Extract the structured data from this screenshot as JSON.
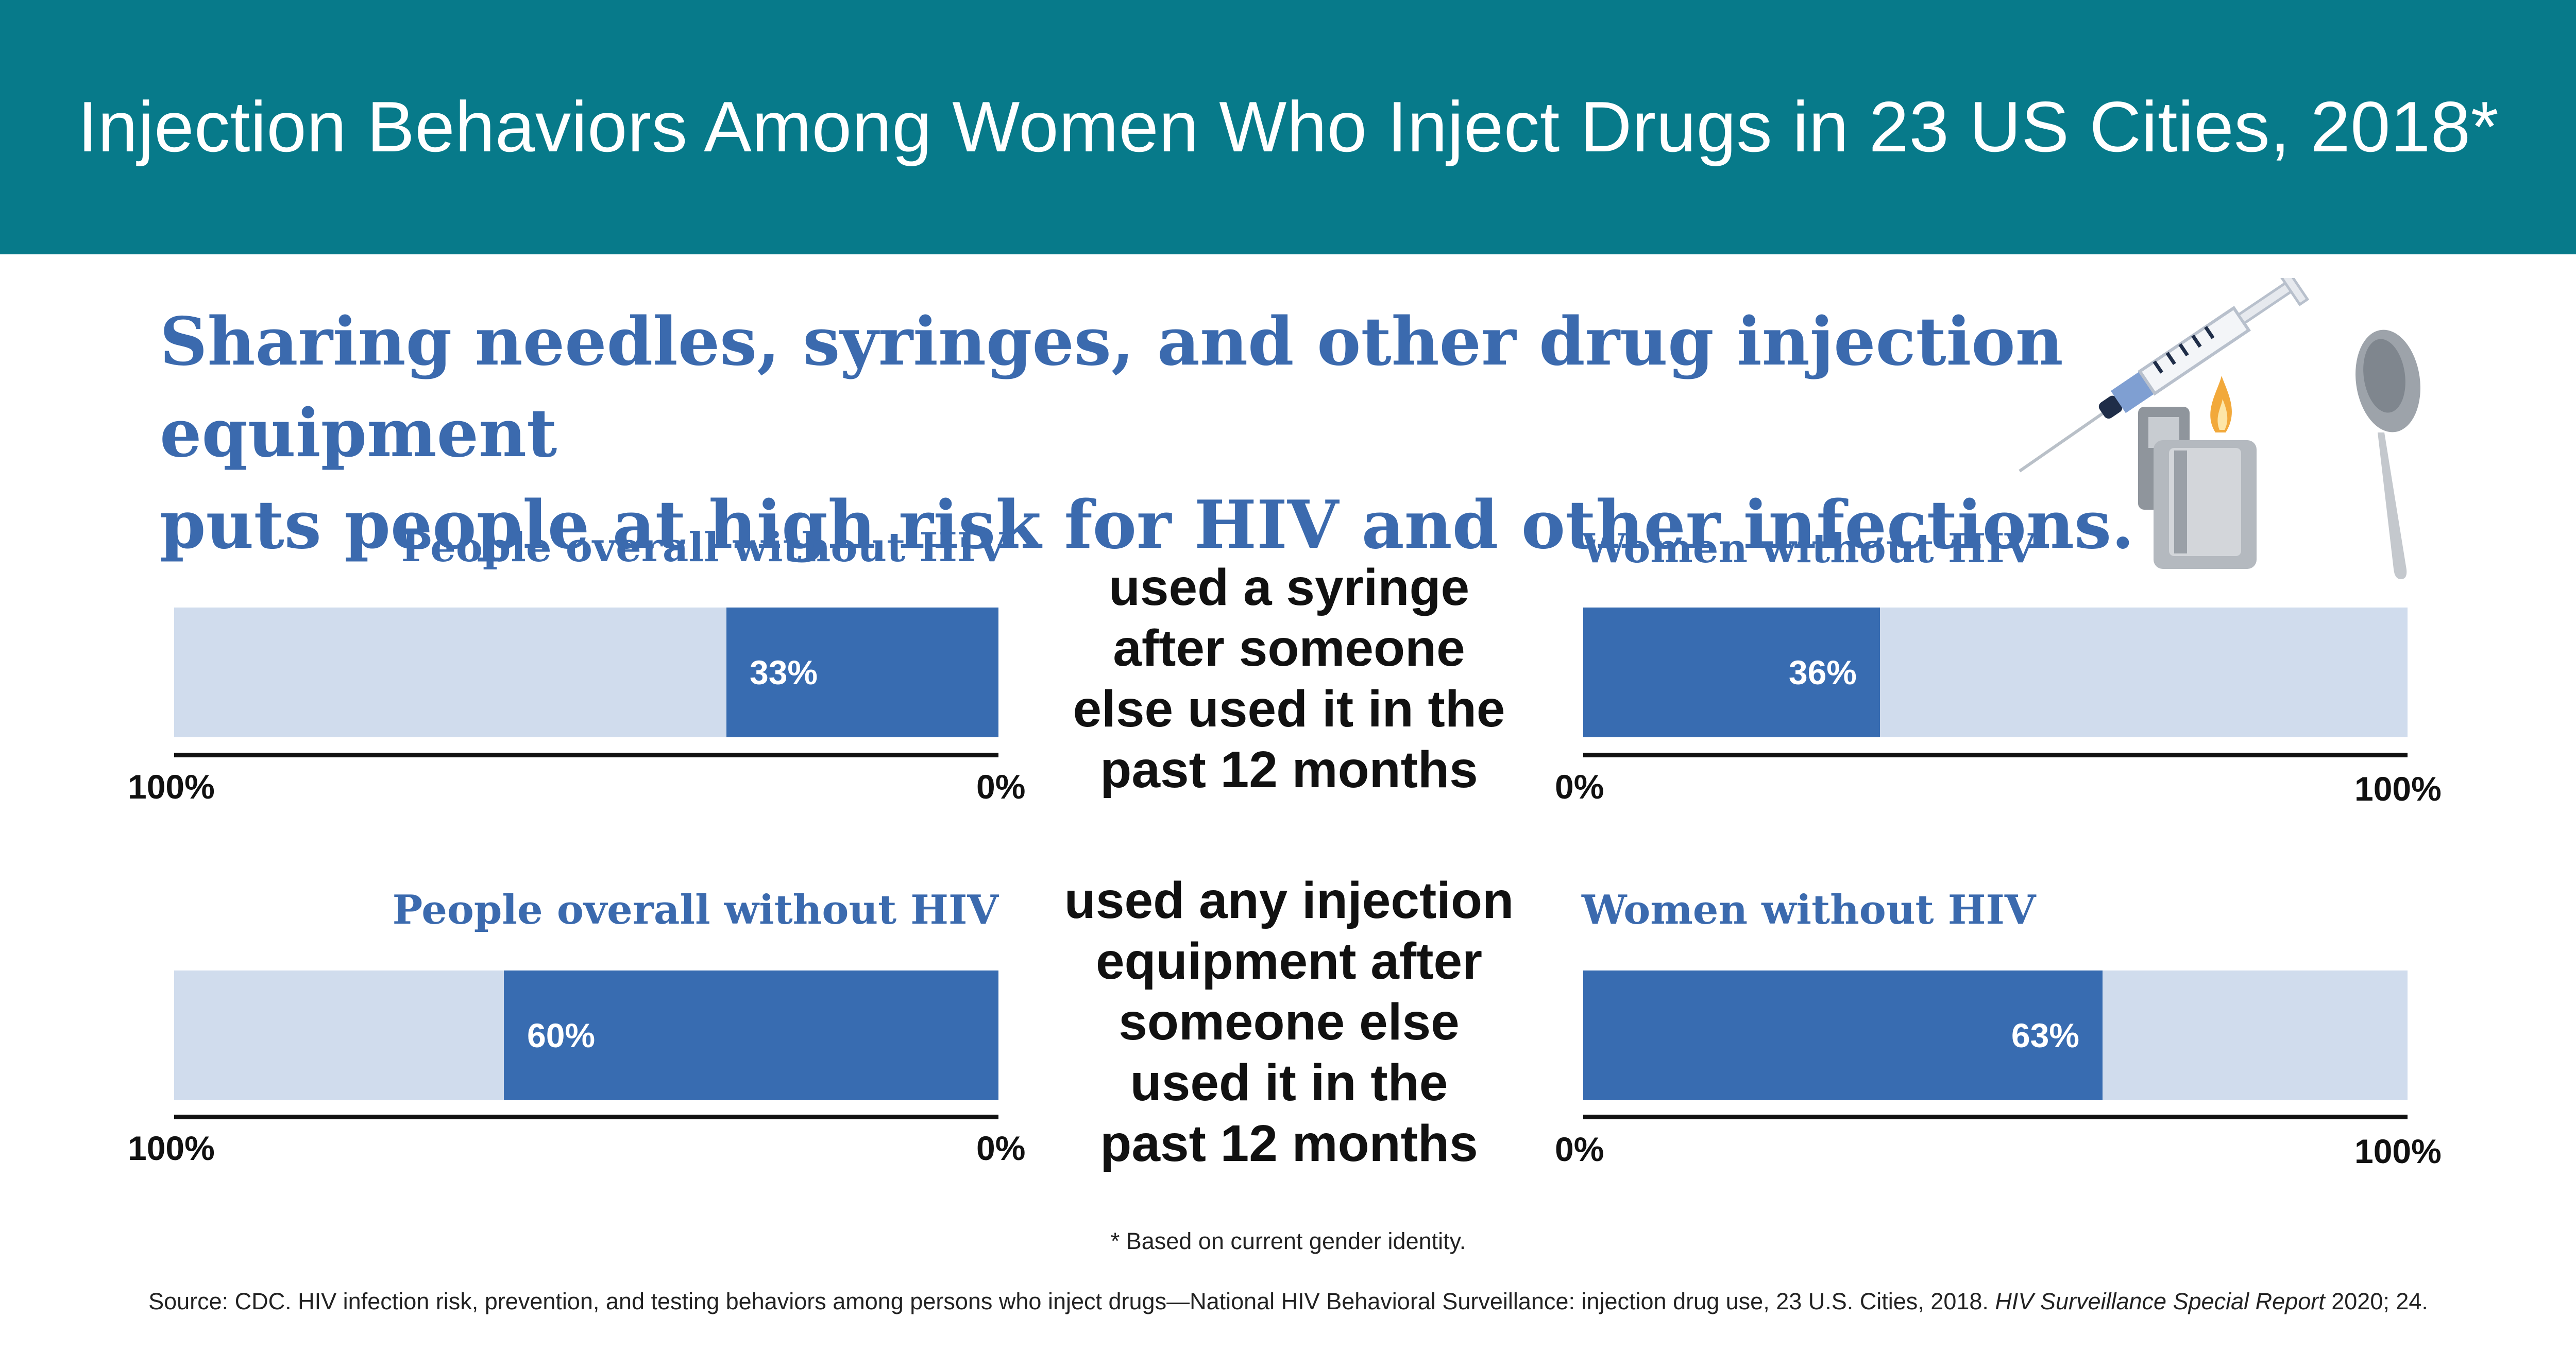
{
  "header": {
    "title": "Injection Behaviors Among Women Who Inject Drugs in 23 US Cities, 2018*"
  },
  "subtitle": {
    "line1": "Sharing needles, syringes, and other drug injection equipment",
    "line2": "puts people at high risk for HIV and other infections."
  },
  "colors": {
    "header_bg": "#077a8a",
    "accent": "#3b6aae",
    "bar_fill": "#386cb1",
    "bar_track": "#d0dced"
  },
  "chart_data": [
    {
      "type": "bar",
      "orientation": "horizontal",
      "direction": "right-to-left",
      "title": "People overall without HIV",
      "description": "used a syringe after someone else used it in the past 12 months",
      "values": [
        33
      ],
      "value_labels": [
        "33%"
      ],
      "xlim": [
        0,
        100
      ],
      "tick_labels": [
        "100%",
        "0%"
      ]
    },
    {
      "type": "bar",
      "orientation": "horizontal",
      "direction": "left-to-right",
      "title": "Women without HIV",
      "description": "used a syringe after someone else used it in the past 12 months",
      "values": [
        36
      ],
      "value_labels": [
        "36%"
      ],
      "xlim": [
        0,
        100
      ],
      "tick_labels": [
        "0%",
        "100%"
      ]
    },
    {
      "type": "bar",
      "orientation": "horizontal",
      "direction": "right-to-left",
      "title": "People overall without HIV",
      "description": "used any injection equipment after someone else used it in the past 12 months",
      "values": [
        60
      ],
      "value_labels": [
        "60%"
      ],
      "xlim": [
        0,
        100
      ],
      "tick_labels": [
        "100%",
        "0%"
      ]
    },
    {
      "type": "bar",
      "orientation": "horizontal",
      "direction": "left-to-right",
      "title": "Women without HIV",
      "description": "used any injection equipment after someone else used it in the past 12 months",
      "values": [
        63
      ],
      "value_labels": [
        "63%"
      ],
      "xlim": [
        0,
        100
      ],
      "tick_labels": [
        "0%",
        "100%"
      ]
    }
  ],
  "descriptions": {
    "row1": [
      "used a syringe",
      "after someone",
      "else used it in the",
      "past 12 months"
    ],
    "row2": [
      "used any injection",
      "equipment after",
      "someone else",
      "used it in the",
      "past 12 months"
    ]
  },
  "footnote": "* Based on current gender identity.",
  "source": {
    "text": "Source: CDC. HIV infection risk, prevention, and testing behaviors among persons who inject drugs—National HIV Behavioral Surveillance: injection drug use, 23 U.S. Cities, 2018. ",
    "italic": "HIV Surveillance Special Report",
    "end": " 2020; 24."
  },
  "illustration": {
    "icons": [
      "syringe-icon",
      "lighter-icon",
      "spoon-icon"
    ]
  }
}
